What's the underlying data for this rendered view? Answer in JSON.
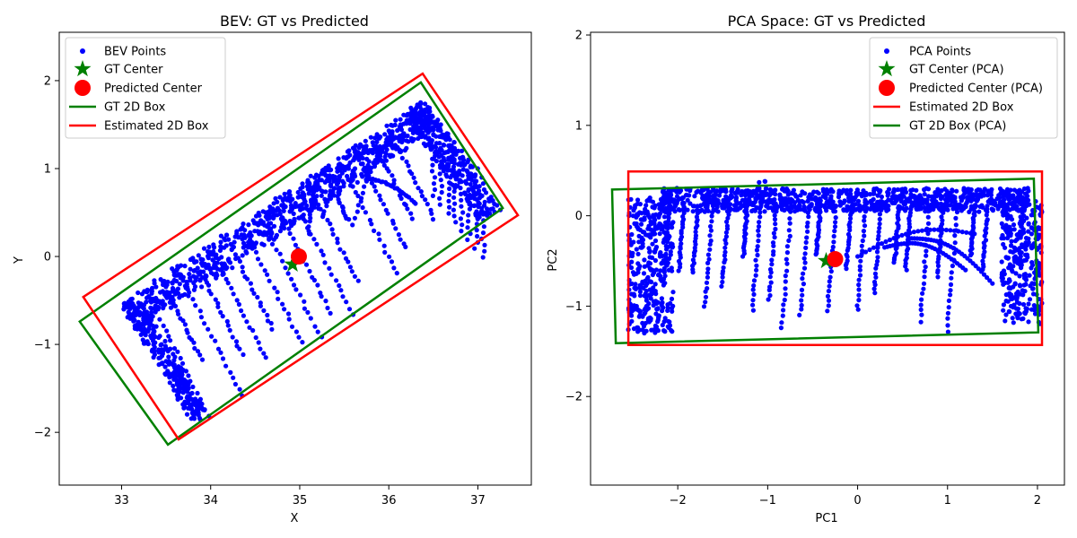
{
  "chart_data": [
    {
      "type": "scatter",
      "title": "BEV: GT vs Predicted",
      "xlabel": "X",
      "ylabel": "Y",
      "xlim": [
        32.3,
        37.6
      ],
      "ylim": [
        -2.6,
        2.55
      ],
      "xticks": [
        33,
        34,
        35,
        36,
        37
      ],
      "yticks": [
        -2,
        -1,
        0,
        1,
        2
      ],
      "grid": false,
      "legend_position": "top-left",
      "legend": [
        {
          "label": "BEV Points",
          "kind": "dot",
          "color": "#0000ff"
        },
        {
          "label": "GT Center",
          "kind": "star",
          "color": "#008000"
        },
        {
          "label": "Predicted Center",
          "kind": "circle",
          "color": "#ff0000"
        },
        {
          "label": "GT 2D Box",
          "kind": "line",
          "color": "#008000"
        },
        {
          "label": "Estimated 2D Box",
          "kind": "line",
          "color": "#ff0000"
        }
      ],
      "gt_center": [
        34.92,
        -0.09
      ],
      "pred_center": [
        34.99,
        0.0
      ],
      "gt_box": [
        [
          32.53,
          -0.74
        ],
        [
          36.36,
          1.98
        ],
        [
          37.28,
          0.55
        ],
        [
          33.52,
          -2.14
        ]
      ],
      "est_box": [
        [
          32.57,
          -0.46
        ],
        [
          36.38,
          2.08
        ],
        [
          37.45,
          0.47
        ],
        [
          33.64,
          -2.08
        ]
      ],
      "points_color": "#0000ff",
      "point_clusters": {
        "top_edge": {
          "from": [
            33.0,
            -0.55
          ],
          "to": [
            36.4,
            1.78
          ]
        },
        "right_edge": {
          "from": [
            36.4,
            1.78
          ],
          "to": [
            37.2,
            0.55
          ]
        },
        "left_edge": {
          "from": [
            33.0,
            -0.55
          ],
          "to": [
            33.85,
            -1.9
          ]
        },
        "arcs": [
          {
            "base": [
              35.6,
              0.9
            ],
            "end": [
              35.2,
              0.2
            ]
          },
          {
            "base": [
              36.0,
              0.85
            ],
            "end": [
              36.45,
              0.6
            ]
          },
          {
            "base": [
              36.2,
              1.3
            ],
            "end": [
              35.5,
              0.3
            ]
          }
        ]
      }
    },
    {
      "type": "scatter",
      "title": "PCA Space: GT vs Predicted",
      "xlabel": "PC1",
      "ylabel": "PC2",
      "xlim": [
        -2.97,
        2.3
      ],
      "ylim": [
        -2.98,
        2.03
      ],
      "xticks": [
        -2,
        -1,
        0,
        1,
        2
      ],
      "yticks": [
        -2,
        -1,
        0,
        1,
        2
      ],
      "grid": false,
      "legend_position": "top-right",
      "legend": [
        {
          "label": "PCA Points",
          "kind": "dot",
          "color": "#0000ff"
        },
        {
          "label": "GT Center (PCA)",
          "kind": "star",
          "color": "#008000"
        },
        {
          "label": "Predicted Center (PCA)",
          "kind": "circle",
          "color": "#ff0000"
        },
        {
          "label": "Estimated 2D Box",
          "kind": "line",
          "color": "#ff0000"
        },
        {
          "label": "GT 2D Box (PCA)",
          "kind": "line",
          "color": "#008000"
        }
      ],
      "gt_center": [
        -0.35,
        -0.5
      ],
      "pred_center": [
        -0.25,
        -0.48
      ],
      "gt_box": [
        [
          -2.73,
          0.29
        ],
        [
          1.96,
          0.41
        ],
        [
          2.01,
          -1.29
        ],
        [
          -2.69,
          -1.41
        ]
      ],
      "est_box": [
        [
          -2.55,
          0.49
        ],
        [
          2.05,
          0.49
        ],
        [
          2.05,
          -1.43
        ],
        [
          -2.55,
          -1.43
        ]
      ],
      "points_color": "#0000ff"
    }
  ]
}
